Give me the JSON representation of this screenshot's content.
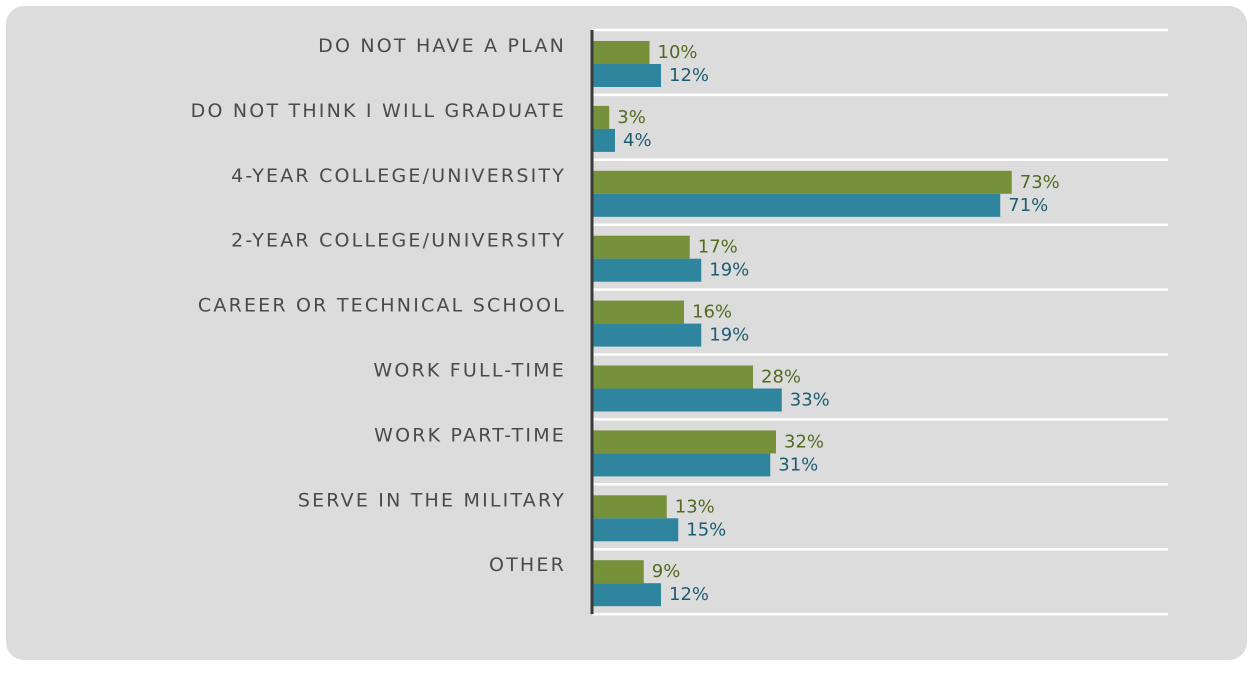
{
  "colors": {
    "series_a": "#76913a",
    "series_b": "#2f849e",
    "label_a": "#56691f",
    "label_b": "#1d5d72",
    "gridline": "#ffffff",
    "axis": "#3a3a3a",
    "panel": "#dcdcdc"
  },
  "chart_data": {
    "type": "bar",
    "orientation": "horizontal",
    "categories": [
      "DO NOT HAVE A PLAN",
      "DO NOT THINK I WILL GRADUATE",
      "4-YEAR COLLEGE/UNIVERSITY",
      "2-YEAR COLLEGE/UNIVERSITY",
      "CAREER OR TECHNICAL SCHOOL",
      "WORK FULL-TIME",
      "WORK PART-TIME",
      "SERVE IN THE MILITARY",
      "OTHER"
    ],
    "series": [
      {
        "values": [
          10,
          3,
          73,
          17,
          16,
          28,
          32,
          13,
          9
        ],
        "labels": [
          "10%",
          "3%",
          "73%",
          "17%",
          "16%",
          "28%",
          "32%",
          "13%",
          "9%"
        ]
      },
      {
        "values": [
          12,
          4,
          71,
          19,
          19,
          33,
          31,
          15,
          12
        ],
        "labels": [
          "12%",
          "4%",
          "71%",
          "19%",
          "19%",
          "33%",
          "31%",
          "15%",
          "12%"
        ]
      }
    ],
    "xlim": [
      0,
      100
    ],
    "grid": true,
    "legend": "none"
  }
}
